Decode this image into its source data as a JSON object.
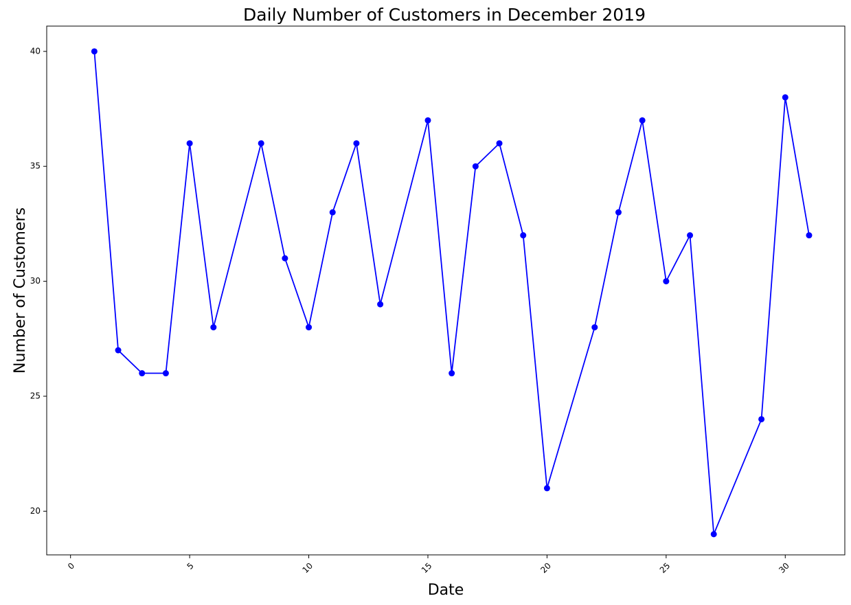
{
  "chart_data": {
    "type": "line",
    "title": "Daily Number of Customers in December 2019",
    "xlabel": "Date",
    "ylabel": "Number of Customers",
    "xlim": [
      -1.0,
      32.5
    ],
    "ylim": [
      18.1,
      41.1
    ],
    "x_ticks": [
      0,
      5,
      10,
      15,
      20,
      25,
      30
    ],
    "x_tick_rotation_deg": 45,
    "y_ticks": [
      20,
      25,
      30,
      35,
      40
    ],
    "grid": false,
    "legend": "none",
    "line_color": "#0000ff",
    "marker": "circle",
    "series": [
      {
        "x": [
          1,
          2,
          3,
          4,
          5,
          6,
          8,
          9,
          10,
          11,
          12,
          13,
          15,
          16,
          17,
          18,
          19,
          20,
          22,
          23,
          24,
          25,
          26,
          27,
          29,
          30,
          31
        ],
        "values": [
          40,
          27,
          26,
          26,
          36,
          28,
          36,
          31,
          28,
          33,
          36,
          29,
          37,
          26,
          35,
          36,
          32,
          21,
          28,
          33,
          37,
          30,
          32,
          19,
          24,
          38,
          32
        ]
      }
    ]
  }
}
